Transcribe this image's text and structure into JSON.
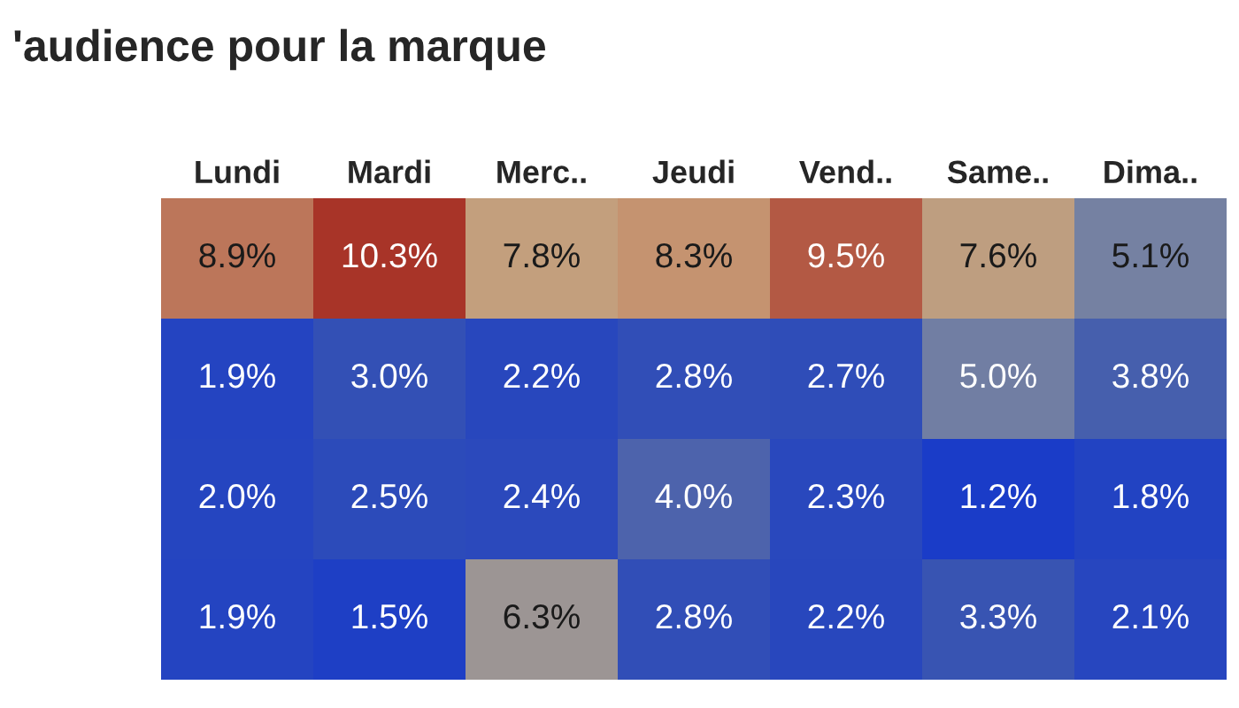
{
  "chart_data": {
    "type": "heatmap",
    "title": "'audience pour la marque",
    "categories": [
      "Lundi",
      "Mardi",
      "Merc..",
      "Jeudi",
      "Vend..",
      "Same..",
      "Dima.."
    ],
    "y_categories": [
      null,
      null,
      null,
      null
    ],
    "cells": [
      [
        8.9,
        10.3,
        7.8,
        8.3,
        9.5,
        7.6,
        5.1
      ],
      [
        1.9,
        3.0,
        2.2,
        2.8,
        2.7,
        5.0,
        3.8
      ],
      [
        2.0,
        2.5,
        2.4,
        4.0,
        2.3,
        1.2,
        1.8
      ],
      [
        1.9,
        1.5,
        6.3,
        2.8,
        2.2,
        3.3,
        2.1
      ]
    ],
    "cell_labels": [
      [
        "8.9%",
        "10.3%",
        "7.8%",
        "8.3%",
        "9.5%",
        "7.6%",
        "5.1%"
      ],
      [
        "1.9%",
        "3.0%",
        "2.2%",
        "2.8%",
        "2.7%",
        "5.0%",
        "3.8%"
      ],
      [
        "2.0%",
        "2.5%",
        "2.4%",
        "4.0%",
        "2.3%",
        "1.2%",
        "1.8%"
      ],
      [
        "1.9%",
        "1.5%",
        "6.3%",
        "2.8%",
        "2.2%",
        "3.3%",
        "2.1%"
      ]
    ]
  }
}
